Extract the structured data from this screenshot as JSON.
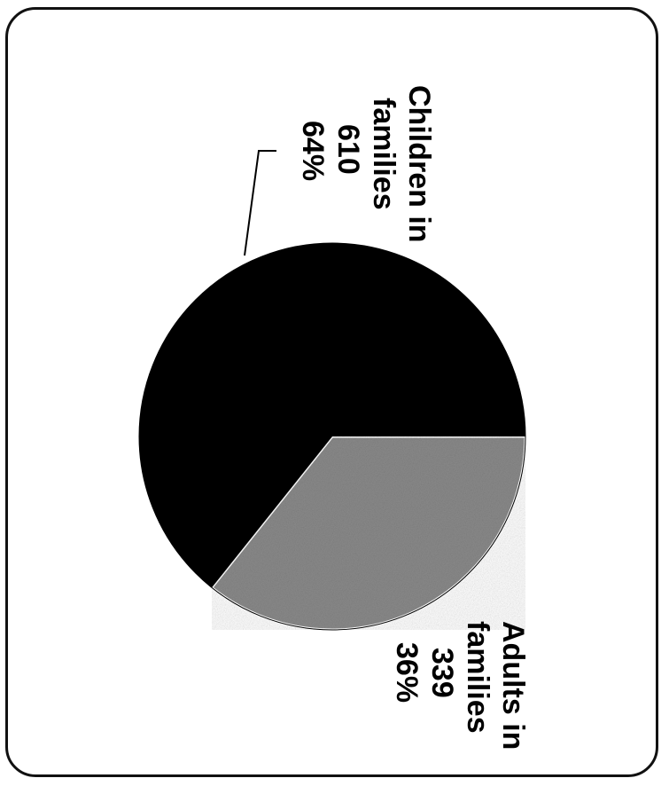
{
  "chart_data": {
    "type": "pie",
    "slices": [
      {
        "label": "Children in families",
        "value": 610,
        "percent": "64%",
        "color": "#000000"
      },
      {
        "label": "Adults in families",
        "value": 339,
        "percent": "36%",
        "color": "#8a8a8a"
      }
    ],
    "labels": {
      "children": {
        "line1": "Children in",
        "line2": "families",
        "value": "610",
        "percent": "64%"
      },
      "adults": {
        "line1": "Adults in",
        "line2": "families",
        "value": "339",
        "percent": "36%"
      }
    },
    "orientation": "rotated 90° clockwise",
    "legend": "none",
    "grid": false
  }
}
